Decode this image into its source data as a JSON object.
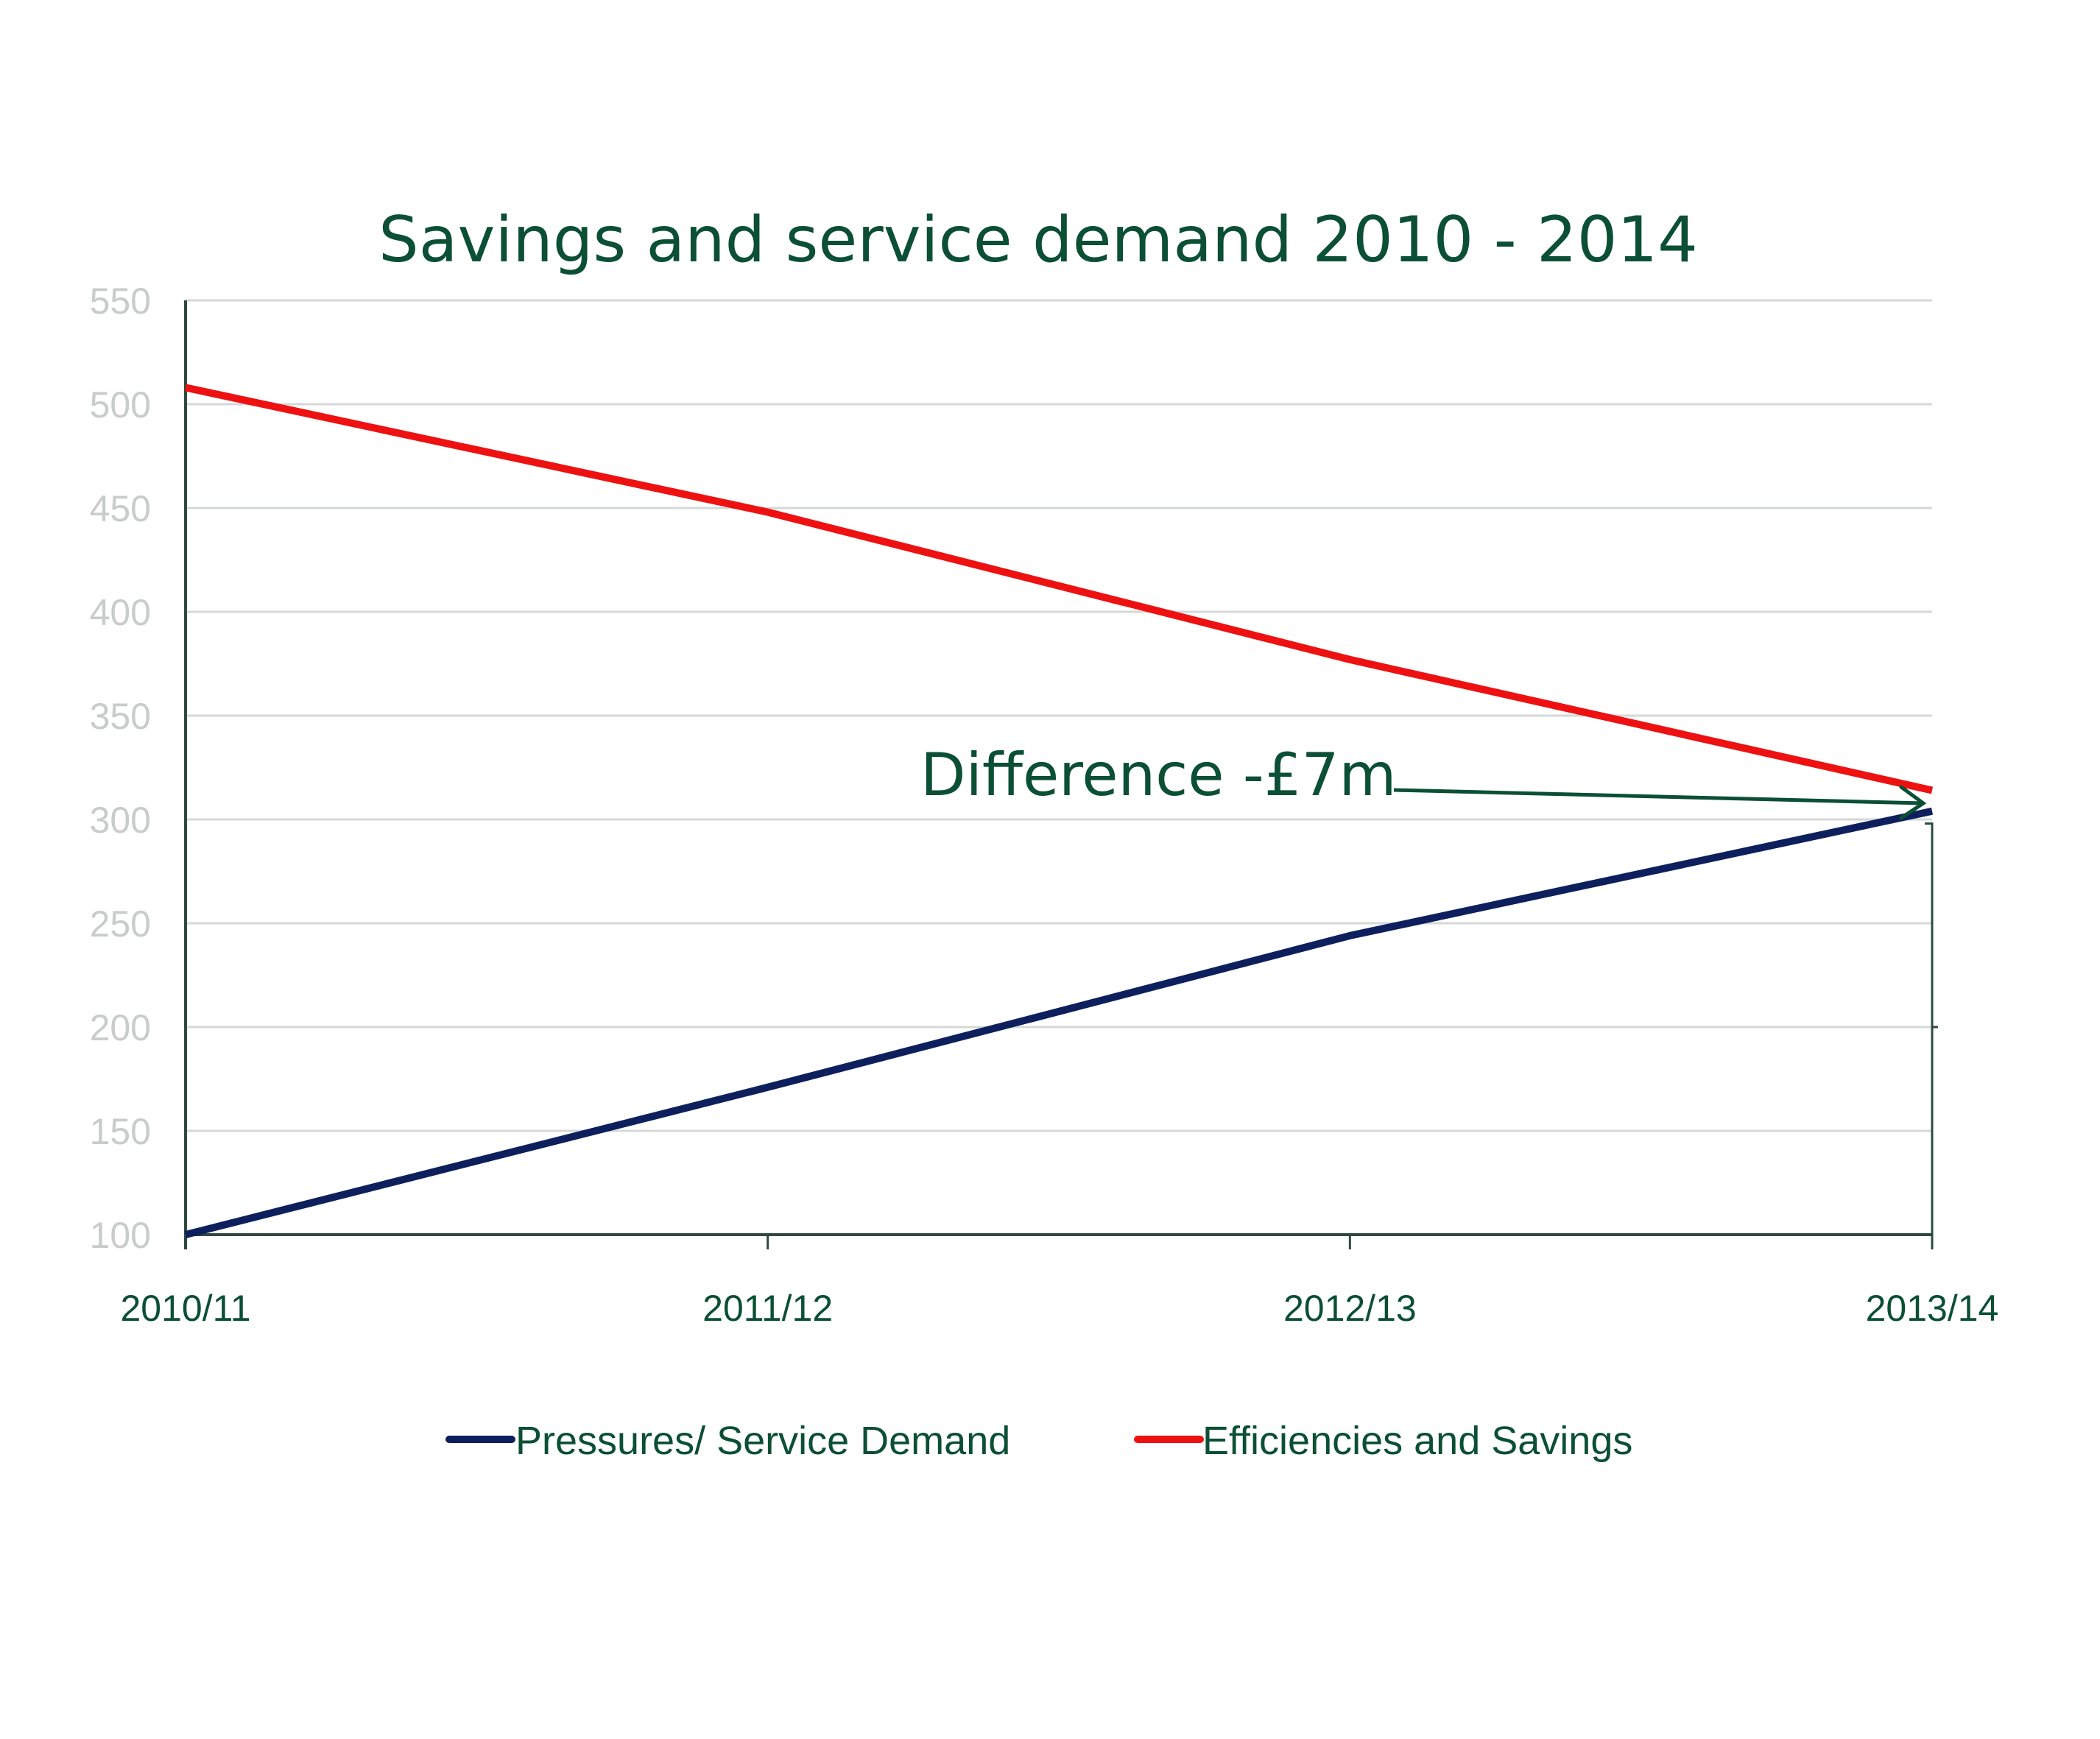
{
  "chart_data": {
    "type": "line",
    "title": "Savings and service demand 2010 - 2014",
    "xlabel": "",
    "ylabel": "",
    "categories": [
      "2010/11",
      "2011/12",
      "2012/13",
      "2013/14"
    ],
    "ylim": [
      100,
      550
    ],
    "yticks": [
      100,
      150,
      200,
      250,
      300,
      350,
      400,
      450,
      500,
      550
    ],
    "grid": true,
    "legend_position": "bottom",
    "series": [
      {
        "name": "Pressures/ Service Demand",
        "color": "#0d1f5c",
        "values": [
          100,
          171,
          244,
          304
        ]
      },
      {
        "name": "Efficiencies and Savings",
        "color": "#ee1111",
        "values": [
          508,
          448,
          377,
          314
        ]
      }
    ],
    "annotations": [
      {
        "text": "Difference -£7m",
        "color": "#0b4f35",
        "points_to": "2013/14"
      }
    ]
  }
}
